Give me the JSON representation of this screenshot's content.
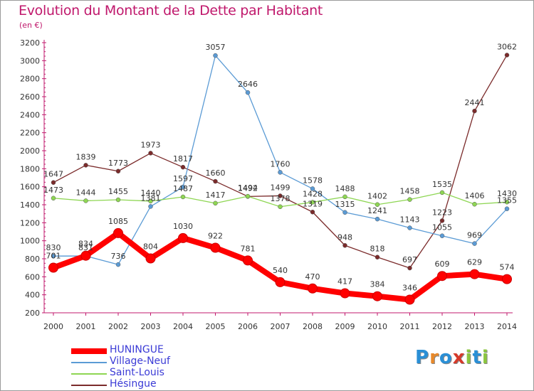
{
  "title": "Evolution du Montant de la Dette par Habitant",
  "subtitle": "(en €)",
  "logo_text": "Proxiti",
  "chart_data": {
    "type": "line",
    "x": [
      "2000",
      "2001",
      "2002",
      "2003",
      "2004",
      "2005",
      "2006",
      "2007",
      "2008",
      "2009",
      "2010",
      "2011",
      "2012",
      "2013",
      "2014"
    ],
    "y_ticks": [
      200,
      400,
      600,
      800,
      1000,
      1200,
      1400,
      1600,
      1800,
      2000,
      2200,
      2400,
      2600,
      2800,
      3000,
      3200
    ],
    "ylim": [
      200,
      3200
    ],
    "grid": false,
    "legend_position": "bottom-left",
    "series": [
      {
        "name": "HUNINGUE",
        "color": "#ff0000",
        "values": [
          701,
          834,
          1085,
          804,
          1030,
          922,
          781,
          540,
          470,
          417,
          384,
          346,
          609,
          629,
          574
        ]
      },
      {
        "name": "Village-Neuf",
        "color": "#5b9bd5",
        "values": [
          830,
          831,
          736,
          1381,
          1597,
          3057,
          2646,
          1760,
          1578,
          1315,
          1241,
          1143,
          1055,
          969,
          1355
        ]
      },
      {
        "name": "Saint-Louis",
        "color": "#8ed653",
        "values": [
          1473,
          1444,
          1455,
          1440,
          1487,
          1417,
          1494,
          1378,
          1428,
          1488,
          1402,
          1458,
          1535,
          1406,
          1430
        ]
      },
      {
        "name": "Hésingue",
        "color": "#7b2b2b",
        "values": [
          1647,
          1839,
          1773,
          1973,
          1817,
          1660,
          1492,
          1499,
          1319,
          948,
          818,
          697,
          1223,
          2441,
          3062
        ]
      }
    ]
  }
}
